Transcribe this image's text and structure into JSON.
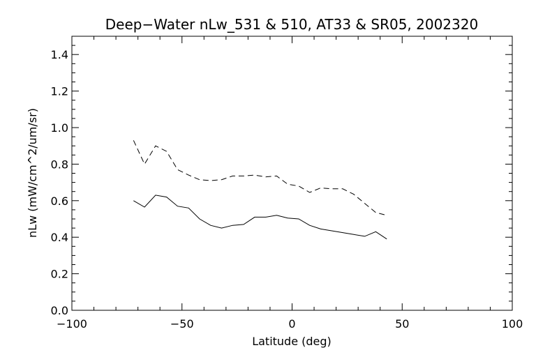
{
  "chart_data": {
    "type": "line",
    "title": "Deep−Water nLw_531 & 510, AT33 & SR05, 2002320",
    "xlabel": "Latitude (deg)",
    "ylabel": "nLw (mW/cm^2/um/sr)",
    "xlim": [
      -100,
      100
    ],
    "ylim": [
      0,
      1.5
    ],
    "x_ticks": [
      -100,
      -50,
      0,
      50,
      100
    ],
    "x_tick_labels": [
      "−100",
      "−50",
      "0",
      "50",
      "100"
    ],
    "y_ticks": [
      0.0,
      0.2,
      0.4,
      0.6,
      0.8,
      1.0,
      1.2,
      1.4
    ],
    "y_tick_labels": [
      "0.0",
      "0.2",
      "0.4",
      "0.6",
      "0.8",
      "1.0",
      "1.2",
      "1.4"
    ],
    "grid": false,
    "series": [
      {
        "style": "solid",
        "x": [
          -72,
          -67,
          -62,
          -57,
          -52,
          -47,
          -42,
          -37,
          -32,
          -27,
          -22,
          -17,
          -12,
          -7,
          -2,
          3,
          8,
          13,
          18,
          23,
          28,
          33,
          38,
          43
        ],
        "y": [
          0.6,
          0.565,
          0.63,
          0.62,
          0.57,
          0.56,
          0.5,
          0.465,
          0.45,
          0.465,
          0.47,
          0.51,
          0.51,
          0.52,
          0.505,
          0.5,
          0.465,
          0.445,
          0.435,
          0.425,
          0.415,
          0.405,
          0.43,
          0.39
        ]
      },
      {
        "style": "dashed",
        "x": [
          -72,
          -67,
          -62,
          -57,
          -52,
          -47,
          -42,
          -37,
          -32,
          -27,
          -22,
          -17,
          -12,
          -7,
          -2,
          3,
          8,
          13,
          18,
          23,
          28,
          33,
          38,
          43
        ],
        "y": [
          0.93,
          0.8,
          0.9,
          0.87,
          0.77,
          0.74,
          0.715,
          0.71,
          0.715,
          0.735,
          0.735,
          0.74,
          0.73,
          0.735,
          0.69,
          0.68,
          0.645,
          0.67,
          0.665,
          0.665,
          0.635,
          0.585,
          0.535,
          0.52
        ]
      }
    ]
  }
}
